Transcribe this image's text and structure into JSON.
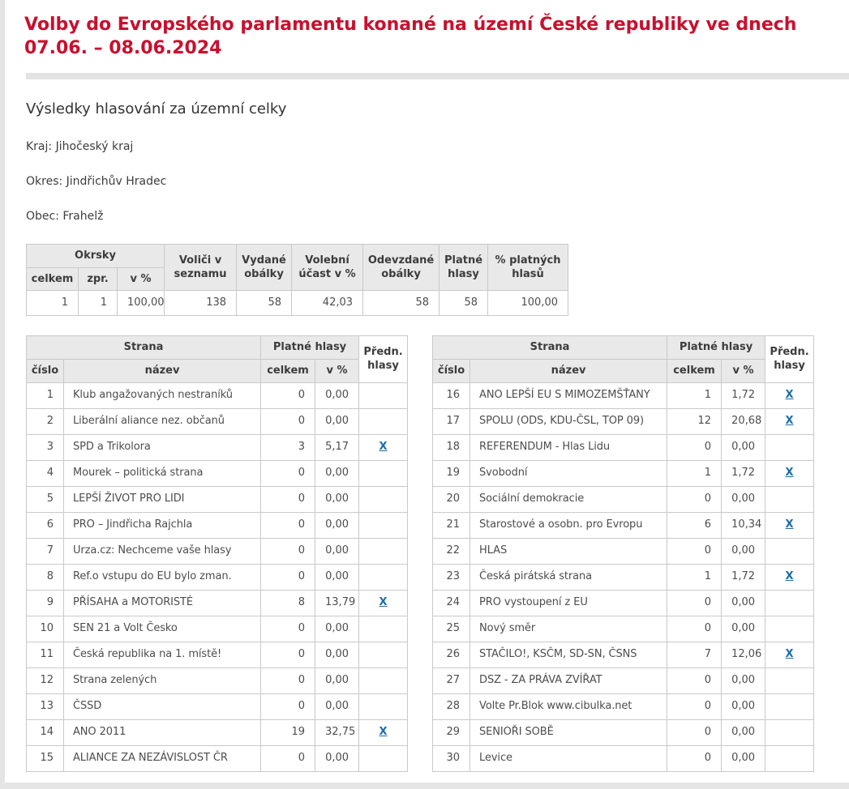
{
  "title": "Volby do Evropského parlamentu konané na území České republiky ve dnech 07.06. – 08.06.2024",
  "section_heading": "Výsledky hlasování za územní celky",
  "region": {
    "kraj_label": "Kraj:",
    "kraj_value": "Jihočeský kraj",
    "okres_label": "Okres:",
    "okres_value": "Jindřichův Hradec",
    "obec_label": "Obec:",
    "obec_value": "Frahelž"
  },
  "summary_table": {
    "headers": {
      "okrsky": "Okrsky",
      "celkem": "celkem",
      "zpr": "zpr.",
      "v_pct": "v %",
      "volici_v_seznamu": "Voliči v seznamu",
      "vydane_obalky": "Vydané obálky",
      "volebni_ucast": "Volební účast v %",
      "odevzdane_obalky": "Odevzdané obálky",
      "platne_hlasy": "Platné hlasy",
      "pct_platnych_hlasu": "% platných hlasů"
    },
    "values": {
      "okrsky_celkem": "1",
      "okrsky_zpr": "1",
      "okrsky_v_pct": "100,00",
      "volici_v_seznamu": "138",
      "vydane_obalky": "58",
      "volebni_ucast": "42,03",
      "odevzdane_obalky": "58",
      "platne_hlasy": "58",
      "pct_platnych_hlasu": "100,00"
    }
  },
  "party_tables": {
    "headers": {
      "strana": "Strana",
      "cislo": "číslo",
      "nazev": "název",
      "platne_hlasy": "Platné hlasy",
      "celkem": "celkem",
      "v_pct": "v %",
      "predn_hlasy": "Předn. hlasy"
    },
    "left": [
      {
        "num": "1",
        "name": "Klub angažovaných nestraníků",
        "votes": "0",
        "pct": "0,00",
        "pref": ""
      },
      {
        "num": "2",
        "name": "Liberální aliance nez. občanů",
        "votes": "0",
        "pct": "0,00",
        "pref": ""
      },
      {
        "num": "3",
        "name": "SPD a Trikolora",
        "votes": "3",
        "pct": "5,17",
        "pref": "X"
      },
      {
        "num": "4",
        "name": "Mourek – politická strana",
        "votes": "0",
        "pct": "0,00",
        "pref": ""
      },
      {
        "num": "5",
        "name": "LEPŠÍ ŽIVOT PRO LIDI",
        "votes": "0",
        "pct": "0,00",
        "pref": ""
      },
      {
        "num": "6",
        "name": "PRO – Jindřicha Rajchla",
        "votes": "0",
        "pct": "0,00",
        "pref": ""
      },
      {
        "num": "7",
        "name": "Urza.cz: Nechceme vaše hlasy",
        "votes": "0",
        "pct": "0,00",
        "pref": ""
      },
      {
        "num": "8",
        "name": "Ref.o vstupu do EU bylo zman.",
        "votes": "0",
        "pct": "0,00",
        "pref": ""
      },
      {
        "num": "9",
        "name": "PŘÍSAHA a MOTORISTÉ",
        "votes": "8",
        "pct": "13,79",
        "pref": "X"
      },
      {
        "num": "10",
        "name": "SEN 21 a Volt Česko",
        "votes": "0",
        "pct": "0,00",
        "pref": ""
      },
      {
        "num": "11",
        "name": "Česká republika na 1. místě!",
        "votes": "0",
        "pct": "0,00",
        "pref": ""
      },
      {
        "num": "12",
        "name": "Strana zelených",
        "votes": "0",
        "pct": "0,00",
        "pref": ""
      },
      {
        "num": "13",
        "name": "ČSSD",
        "votes": "0",
        "pct": "0,00",
        "pref": ""
      },
      {
        "num": "14",
        "name": "ANO 2011",
        "votes": "19",
        "pct": "32,75",
        "pref": "X"
      },
      {
        "num": "15",
        "name": "ALIANCE ZA NEZÁVISLOST ČR",
        "votes": "0",
        "pct": "0,00",
        "pref": ""
      }
    ],
    "right": [
      {
        "num": "16",
        "name": "ANO LEPŠÍ EU S MIMOZEMŠŤANY",
        "votes": "1",
        "pct": "1,72",
        "pref": "X"
      },
      {
        "num": "17",
        "name": "SPOLU (ODS, KDU-ČSL, TOP 09)",
        "votes": "12",
        "pct": "20,68",
        "pref": "X"
      },
      {
        "num": "18",
        "name": "REFERENDUM - Hlas Lidu",
        "votes": "0",
        "pct": "0,00",
        "pref": ""
      },
      {
        "num": "19",
        "name": "Svobodní",
        "votes": "1",
        "pct": "1,72",
        "pref": "X"
      },
      {
        "num": "20",
        "name": "Sociální demokracie",
        "votes": "0",
        "pct": "0,00",
        "pref": ""
      },
      {
        "num": "21",
        "name": "Starostové a osobn. pro Evropu",
        "votes": "6",
        "pct": "10,34",
        "pref": "X"
      },
      {
        "num": "22",
        "name": "HLAS",
        "votes": "0",
        "pct": "0,00",
        "pref": ""
      },
      {
        "num": "23",
        "name": "Česká pirátská strana",
        "votes": "1",
        "pct": "1,72",
        "pref": "X"
      },
      {
        "num": "24",
        "name": "PRO vystoupení z EU",
        "votes": "0",
        "pct": "0,00",
        "pref": ""
      },
      {
        "num": "25",
        "name": "Nový směr",
        "votes": "0",
        "pct": "0,00",
        "pref": ""
      },
      {
        "num": "26",
        "name": "STAČILO!, KSČM, SD-SN, ČSNS",
        "votes": "7",
        "pct": "12,06",
        "pref": "X"
      },
      {
        "num": "27",
        "name": "DSZ - ZA PRÁVA ZVÍŘAT",
        "votes": "0",
        "pct": "0,00",
        "pref": ""
      },
      {
        "num": "28",
        "name": "Volte Pr.Blok www.cibulka.net",
        "votes": "0",
        "pct": "0,00",
        "pref": ""
      },
      {
        "num": "29",
        "name": "SENIOŘI SOBĚ",
        "votes": "0",
        "pct": "0,00",
        "pref": ""
      },
      {
        "num": "30",
        "name": "Levice",
        "votes": "0",
        "pct": "0,00",
        "pref": ""
      }
    ]
  },
  "colors": {
    "title_red": "#c8102e",
    "link_blue": "#1a6dad",
    "header_bg": "#e9e9e9",
    "table_border": "#c9c9c9",
    "divider_gray": "#e3e3e3",
    "page_bg": "#e5e5e5",
    "body_text": "#4d4d4d"
  }
}
